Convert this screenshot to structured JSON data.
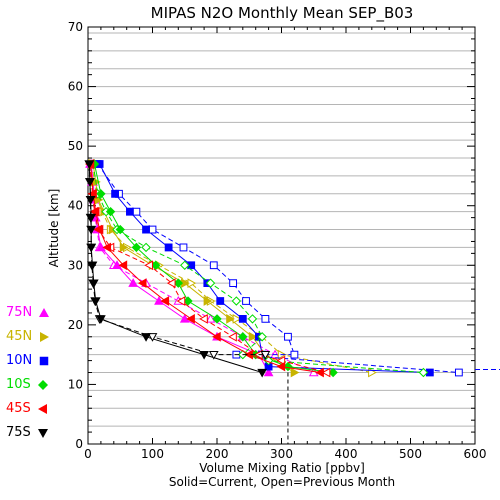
{
  "chart_data": {
    "type": "line",
    "title": "MIPAS N2O Monthly Mean SEP_B03",
    "xlabel": "Volume Mixing Ratio [ppbv]",
    "subtitle": "Solid=Current, Open=Previous Month",
    "ylabel": "Altitude [km]",
    "xlim": [
      0,
      600
    ],
    "ylim": [
      0,
      70
    ],
    "xticks": [
      "0",
      "100",
      "200",
      "300",
      "400",
      "500",
      "600"
    ],
    "yticks": [
      "0",
      "10",
      "20",
      "30",
      "40",
      "50",
      "60",
      "70"
    ],
    "grid": "horizontal lines every 3 km",
    "legend_position": "left, outside plot",
    "series": [
      {
        "name": "75N",
        "color": "#ff00ff",
        "marker": "triangle-up",
        "current": [
          [
            5,
            47
          ],
          [
            8,
            44
          ],
          [
            10,
            41
          ],
          [
            12,
            38
          ],
          [
            15,
            36
          ],
          [
            20,
            33
          ],
          [
            45,
            30
          ],
          [
            70,
            27
          ],
          [
            110,
            24
          ],
          [
            150,
            21
          ],
          [
            200,
            18
          ],
          [
            265,
            15
          ],
          [
            280,
            12
          ]
        ],
        "previous": [
          [
            3,
            47
          ],
          [
            6,
            44
          ],
          [
            9,
            41
          ],
          [
            11,
            38
          ],
          [
            14,
            36
          ],
          [
            18,
            33
          ],
          [
            40,
            30
          ],
          [
            90,
            27
          ],
          [
            140,
            24
          ],
          [
            190,
            21
          ],
          [
            240,
            18
          ],
          [
            290,
            15
          ],
          [
            350,
            12
          ]
        ]
      },
      {
        "name": "45N",
        "color": "#c8b400",
        "marker": "triangle-right",
        "current": [
          [
            8,
            47
          ],
          [
            12,
            44
          ],
          [
            16,
            41
          ],
          [
            25,
            39
          ],
          [
            38,
            36
          ],
          [
            55,
            33
          ],
          [
            100,
            30
          ],
          [
            150,
            27
          ],
          [
            185,
            24
          ],
          [
            220,
            21
          ],
          [
            255,
            18
          ],
          [
            275,
            15
          ],
          [
            320,
            12
          ]
        ],
        "previous": [
          [
            6,
            47
          ],
          [
            10,
            44
          ],
          [
            15,
            41
          ],
          [
            22,
            39
          ],
          [
            35,
            36
          ],
          [
            60,
            33
          ],
          [
            110,
            30
          ],
          [
            160,
            27
          ],
          [
            190,
            24
          ],
          [
            230,
            21
          ],
          [
            270,
            18
          ],
          [
            300,
            15
          ],
          [
            440,
            12
          ]
        ]
      },
      {
        "name": "10N",
        "color": "#0000ff",
        "marker": "square",
        "current": [
          [
            18,
            47
          ],
          [
            42,
            42
          ],
          [
            65,
            39
          ],
          [
            90,
            36
          ],
          [
            125,
            33
          ],
          [
            160,
            30
          ],
          [
            185,
            27
          ],
          [
            205,
            24
          ],
          [
            240,
            21
          ],
          [
            265,
            18
          ],
          [
            270,
            15
          ],
          [
            280,
            13
          ],
          [
            530,
            12
          ]
        ],
        "previous": [
          [
            15,
            47
          ],
          [
            48,
            42
          ],
          [
            75,
            39
          ],
          [
            100,
            36
          ],
          [
            148,
            33
          ],
          [
            195,
            30
          ],
          [
            225,
            27
          ],
          [
            245,
            24
          ],
          [
            275,
            21
          ],
          [
            310,
            18
          ],
          [
            320,
            15
          ],
          [
            230,
            15
          ],
          [
            575,
            12
          ]
        ]
      },
      {
        "name": "10S",
        "color": "#00dd00",
        "marker": "diamond",
        "current": [
          [
            10,
            47
          ],
          [
            20,
            42
          ],
          [
            35,
            39
          ],
          [
            50,
            36
          ],
          [
            75,
            33
          ],
          [
            105,
            30
          ],
          [
            140,
            27
          ],
          [
            155,
            24
          ],
          [
            200,
            21
          ],
          [
            240,
            18
          ],
          [
            260,
            15
          ],
          [
            310,
            13
          ],
          [
            380,
            12
          ]
        ],
        "previous": [
          [
            8,
            47
          ],
          [
            15,
            42
          ],
          [
            28,
            39
          ],
          [
            45,
            36
          ],
          [
            90,
            33
          ],
          [
            150,
            30
          ],
          [
            190,
            27
          ],
          [
            230,
            24
          ],
          [
            255,
            21
          ],
          [
            270,
            18
          ],
          [
            240,
            15
          ],
          [
            280,
            14
          ],
          [
            520,
            12
          ]
        ]
      },
      {
        "name": "45S",
        "color": "#ff0000",
        "marker": "triangle-left",
        "current": [
          [
            4,
            47
          ],
          [
            8,
            42
          ],
          [
            12,
            39
          ],
          [
            18,
            36
          ],
          [
            30,
            33
          ],
          [
            55,
            30
          ],
          [
            85,
            27
          ],
          [
            120,
            24
          ],
          [
            160,
            21
          ],
          [
            200,
            18
          ],
          [
            250,
            15
          ],
          [
            300,
            13
          ],
          [
            360,
            12
          ]
        ],
        "previous": [
          [
            3,
            47
          ],
          [
            7,
            42
          ],
          [
            10,
            39
          ],
          [
            16,
            36
          ],
          [
            35,
            33
          ],
          [
            95,
            30
          ],
          [
            130,
            27
          ],
          [
            145,
            24
          ],
          [
            180,
            21
          ],
          [
            225,
            18
          ],
          [
            265,
            15
          ],
          [
            300,
            14
          ],
          [
            370,
            12
          ]
        ]
      },
      {
        "name": "75S",
        "color": "#000000",
        "marker": "triangle-down",
        "current": [
          [
            2,
            47
          ],
          [
            3,
            44
          ],
          [
            4,
            41
          ],
          [
            5,
            38
          ],
          [
            5,
            36
          ],
          [
            5,
            33
          ],
          [
            7,
            30
          ],
          [
            9,
            27
          ],
          [
            12,
            24
          ],
          [
            20,
            21
          ],
          [
            90,
            18
          ],
          [
            180,
            15
          ],
          [
            270,
            12
          ]
        ],
        "previous": [
          [
            2,
            47
          ],
          [
            3,
            44
          ],
          [
            4,
            41
          ],
          [
            4,
            38
          ],
          [
            5,
            36
          ],
          [
            5,
            33
          ],
          [
            6,
            30
          ],
          [
            8,
            27
          ],
          [
            11,
            24
          ],
          [
            18,
            21
          ],
          [
            100,
            18
          ],
          [
            195,
            15
          ],
          [
            275,
            15
          ]
        ]
      }
    ]
  }
}
